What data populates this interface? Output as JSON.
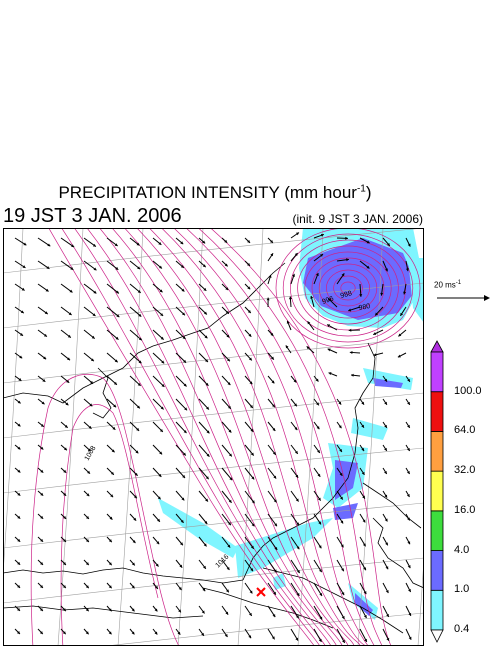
{
  "title": {
    "text": "PRECIPITATION INTENSITY (mm hour",
    "superscript": "-1",
    "suffix": ")"
  },
  "timestamp": "19 JST 3 JAN. 2006",
  "init_time": "(init. 9 JST 3 JAN. 2006)",
  "reference_vector": {
    "label": "20 ms",
    "superscript": "-1",
    "speed_ms": 20
  },
  "colorbar": {
    "levels": [
      "0.4",
      "1.0",
      "4.0",
      "16.0",
      "32.0",
      "64.0",
      "100.0"
    ],
    "colors": [
      "#7ff5ff",
      "#6b6bff",
      "#3ddd3d",
      "#ffff50",
      "#ff9f3f",
      "#ee1010",
      "#c040ff"
    ],
    "under_color": "#ffffff",
    "over_color": "#b02fe0"
  },
  "map": {
    "contour_color": "#cc2288",
    "coastline_color": "#000000",
    "grid_color": "#a0a0a0",
    "contour_labels": [
      "1008",
      "1016",
      "996",
      "988",
      "980"
    ],
    "marker": {
      "symbol": "x",
      "color": "#ff0000"
    }
  }
}
